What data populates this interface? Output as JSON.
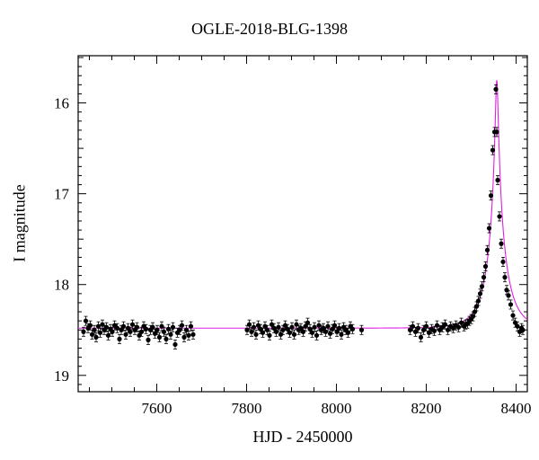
{
  "chart_data": {
    "type": "scatter",
    "title": "OGLE-2018-BLG-1398",
    "xlabel": "HJD - 2450000",
    "ylabel": "I magnitude",
    "xlim": [
      7425,
      8425
    ],
    "ylim": [
      19.18,
      15.48
    ],
    "y_inverted": true,
    "xticks": [
      7600,
      7800,
      8000,
      8200,
      8400
    ],
    "yticks": [
      16,
      17,
      18,
      19
    ],
    "grid": false,
    "model": {
      "name": "microlensing-model",
      "color": "#e020e0",
      "baseline_mag": 18.48,
      "t0": 8357,
      "peak_mag": 15.75,
      "u0": 0.07,
      "tE": 42
    },
    "series": [
      {
        "color": "#000000",
        "x": [
          7437,
          7442,
          7447,
          7452,
          7456,
          7461,
          7465,
          7470,
          7474,
          7479,
          7483,
          7488,
          7492,
          7497,
          7501,
          7506,
          7512,
          7517,
          7521,
          7526,
          7531,
          7536,
          7541,
          7546,
          7551,
          7556,
          7561,
          7566,
          7571,
          7576,
          7581,
          7586,
          7591,
          7596,
          7601,
          7606,
          7611,
          7616,
          7621,
          7626,
          7631,
          7636,
          7641,
          7646,
          7651,
          7656,
          7661,
          7666,
          7671,
          7676,
          7681,
          7801,
          7806,
          7811,
          7816,
          7821,
          7826,
          7831,
          7836,
          7841,
          7846,
          7851,
          7856,
          7861,
          7866,
          7871,
          7876,
          7881,
          7886,
          7891,
          7896,
          7901,
          7906,
          7911,
          7916,
          7921,
          7926,
          7931,
          7936,
          7941,
          7946,
          7951,
          7956,
          7961,
          7966,
          7971,
          7976,
          7981,
          7986,
          7991,
          7996,
          8001,
          8006,
          8011,
          8016,
          8021,
          8026,
          8031,
          8036,
          8056,
          8164,
          8170,
          8176,
          8182,
          8188,
          8194,
          8200,
          8206,
          8212,
          8218,
          8224,
          8230,
          8236,
          8242,
          8248,
          8254,
          8260,
          8266,
          8272,
          8278,
          8284,
          8288,
          8292,
          8296,
          8300,
          8304,
          8308,
          8312,
          8316,
          8320,
          8324,
          8328,
          8332,
          8336,
          8340,
          8344,
          8348,
          8352,
          8355,
          8357,
          8359,
          8363,
          8367,
          8371,
          8375,
          8379,
          8383,
          8388,
          8393,
          8398,
          8403,
          8408,
          8412,
          8415
        ],
        "y": [
          18.52,
          18.4,
          18.48,
          18.45,
          18.55,
          18.5,
          18.58,
          18.46,
          18.53,
          18.44,
          18.5,
          18.47,
          18.56,
          18.49,
          18.52,
          18.45,
          18.48,
          18.6,
          18.5,
          18.46,
          18.55,
          18.48,
          18.52,
          18.44,
          18.5,
          18.47,
          18.56,
          18.52,
          18.46,
          18.49,
          18.61,
          18.5,
          18.47,
          18.54,
          18.5,
          18.58,
          18.46,
          18.52,
          18.6,
          18.49,
          18.55,
          18.47,
          18.66,
          18.53,
          18.5,
          18.45,
          18.58,
          18.5,
          18.56,
          18.46,
          18.55,
          18.5,
          18.44,
          18.52,
          18.47,
          18.55,
          18.45,
          18.49,
          18.53,
          18.46,
          18.5,
          18.56,
          18.44,
          18.48,
          18.52,
          18.47,
          18.55,
          18.5,
          18.45,
          18.49,
          18.53,
          18.47,
          18.55,
          18.44,
          18.5,
          18.48,
          18.52,
          18.46,
          18.42,
          18.49,
          18.53,
          18.47,
          18.56,
          18.45,
          18.5,
          18.48,
          18.52,
          18.46,
          18.54,
          18.49,
          18.45,
          18.52,
          18.48,
          18.55,
          18.47,
          18.5,
          18.53,
          18.46,
          18.49,
          18.5,
          18.5,
          18.46,
          18.52,
          18.48,
          18.58,
          18.5,
          18.46,
          18.53,
          18.49,
          18.51,
          18.45,
          18.5,
          18.47,
          18.44,
          18.5,
          18.46,
          18.48,
          18.45,
          18.47,
          18.42,
          18.46,
          18.44,
          18.43,
          18.4,
          18.38,
          18.35,
          18.3,
          18.24,
          18.18,
          18.1,
          18.02,
          17.92,
          17.8,
          17.62,
          17.38,
          17.02,
          16.52,
          16.32,
          15.85,
          16.32,
          16.85,
          17.25,
          17.55,
          17.75,
          17.92,
          18.06,
          18.12,
          18.22,
          18.34,
          18.42,
          18.46,
          18.52,
          18.48,
          18.5
        ]
      }
    ]
  }
}
